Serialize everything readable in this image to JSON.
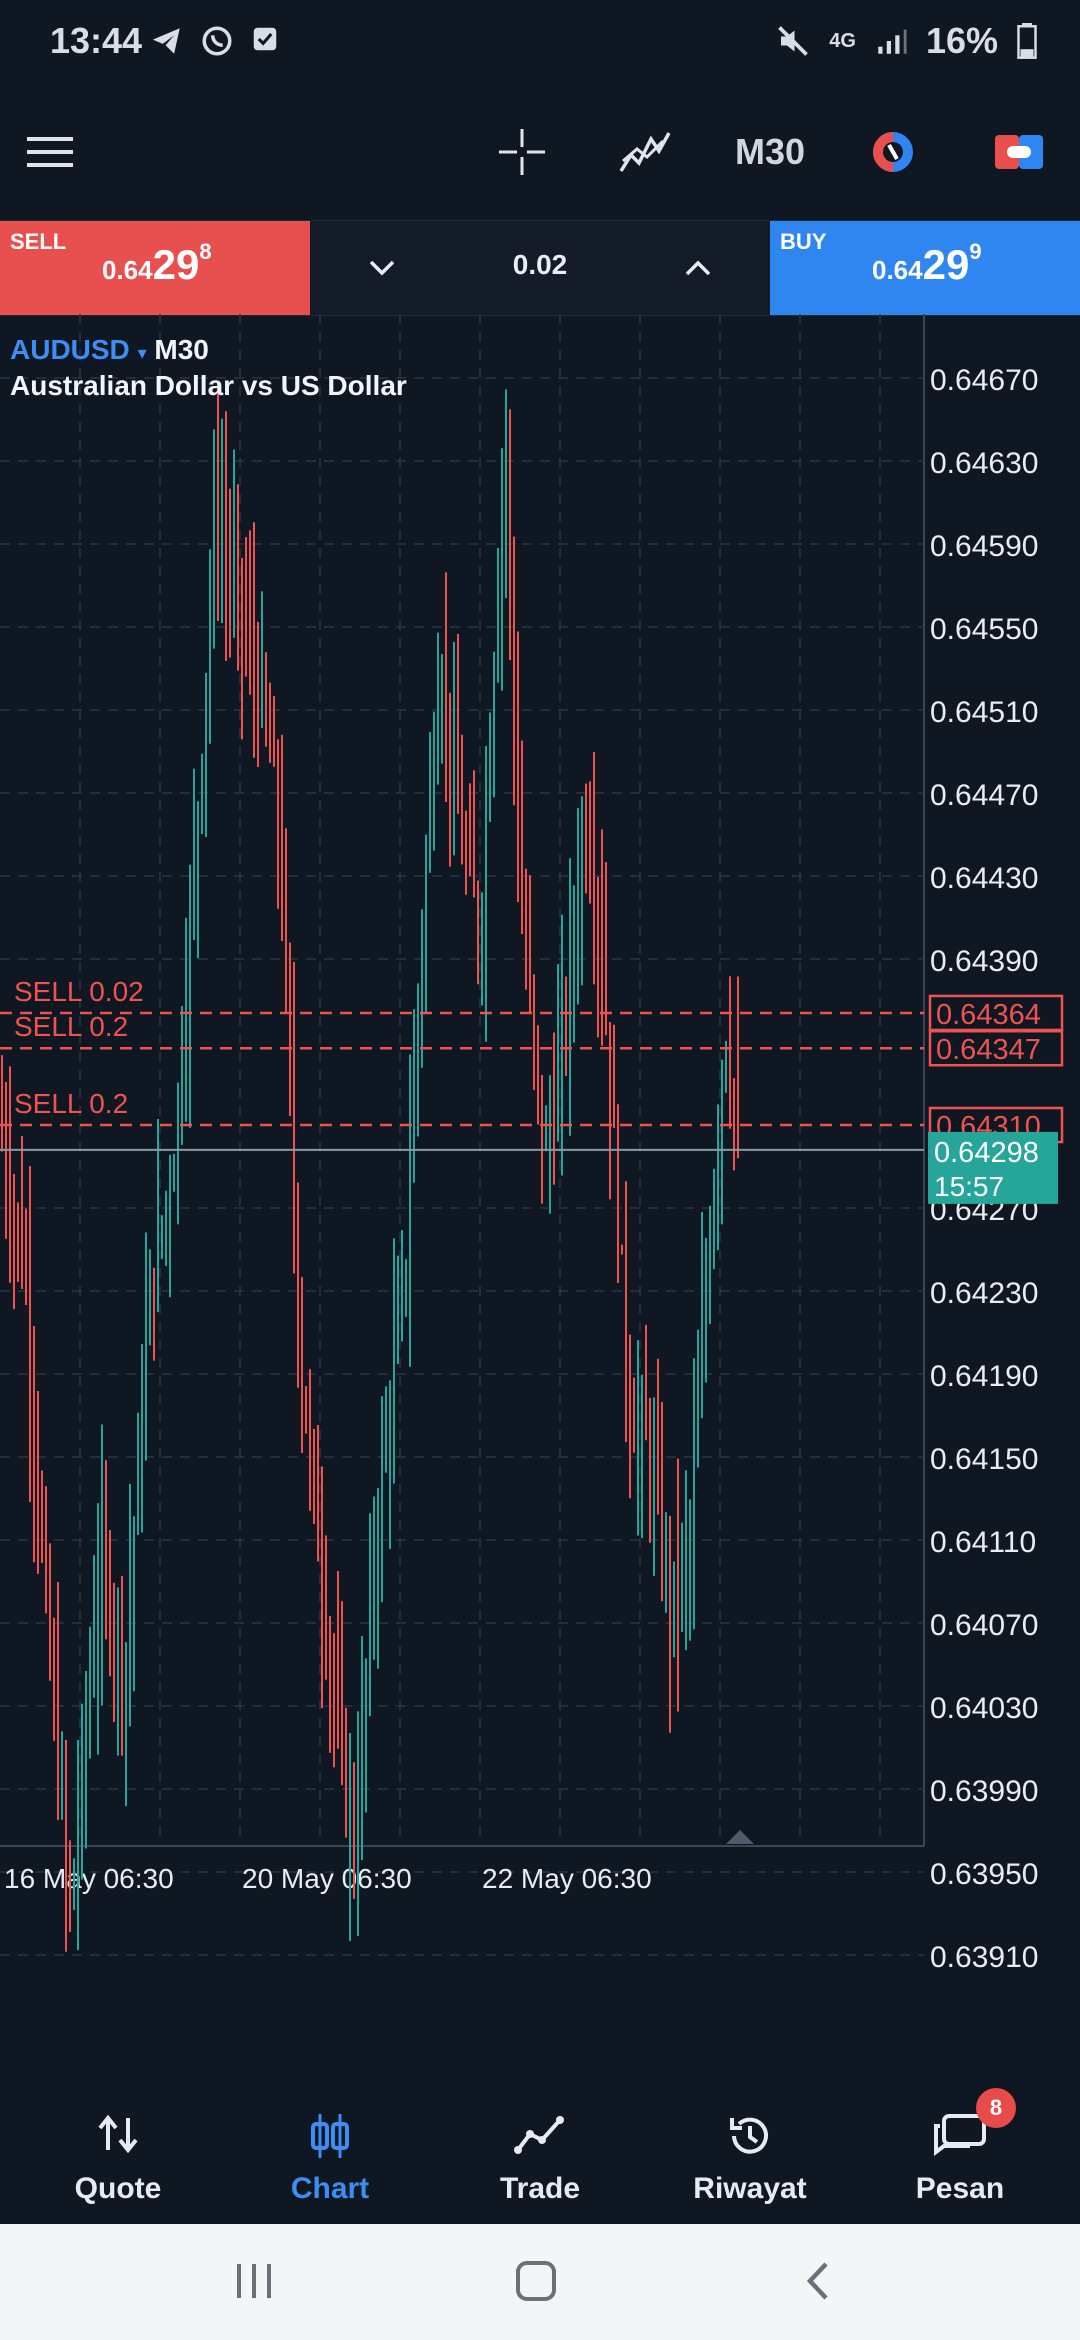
{
  "status": {
    "time": "13:44",
    "network": "4G",
    "battery": "16%",
    "icons": [
      "telegram-icon",
      "whatsapp-icon",
      "checkbox-icon",
      "mute-icon",
      "signal-icon",
      "battery-icon"
    ]
  },
  "toolbar": {
    "timeframe": "M30",
    "icons": [
      "menu-icon",
      "crosshair-icon",
      "indicators-icon",
      "one-click-trading-icon",
      "objects-icon"
    ]
  },
  "trade": {
    "sell_label": "SELL",
    "sell_price_prefix": "0.64",
    "sell_price_big": "29",
    "sell_price_sup": "8",
    "buy_label": "BUY",
    "buy_price_prefix": "0.64",
    "buy_price_big": "29",
    "buy_price_sup": "9",
    "volume": "0.02"
  },
  "chart": {
    "symbol": "AUDUSD",
    "timeframe": "M30",
    "description": "Australian Dollar vs US Dollar",
    "current_price": "0.64298",
    "countdown": "15:57",
    "y_ticks": [
      "0.64670",
      "0.64630",
      "0.64590",
      "0.64550",
      "0.64510",
      "0.64470",
      "0.64430",
      "0.64390",
      "0.64270",
      "0.64230",
      "0.64190",
      "0.64150",
      "0.64110",
      "0.64070",
      "0.64030",
      "0.63990",
      "0.63950",
      "0.63910"
    ],
    "x_ticks": [
      "16 May 06:30",
      "20 May 06:30",
      "22 May 06:30"
    ],
    "orders": [
      {
        "label": "SELL 0.02",
        "price": "0.64364"
      },
      {
        "label": "SELL 0.2",
        "price": "0.64347"
      },
      {
        "label": "SELL 0.2",
        "price": "0.64310"
      }
    ],
    "colors": {
      "bull": "#26a69a",
      "bear": "#ef5350",
      "order_line": "#ef5350",
      "price_tag": "#26a69a",
      "grid": "#2a3646"
    }
  },
  "nav": {
    "items": [
      {
        "label": "Quote",
        "icon": "quote-arrows-icon",
        "active": false
      },
      {
        "label": "Chart",
        "icon": "chart-candles-icon",
        "active": true
      },
      {
        "label": "Trade",
        "icon": "trade-line-icon",
        "active": false
      },
      {
        "label": "Riwayat",
        "icon": "history-icon",
        "active": false
      },
      {
        "label": "Pesan",
        "icon": "messages-icon",
        "active": false,
        "badge": "8"
      }
    ]
  },
  "system_nav": {
    "icons": [
      "recent-apps-icon",
      "home-icon",
      "back-icon"
    ]
  }
}
